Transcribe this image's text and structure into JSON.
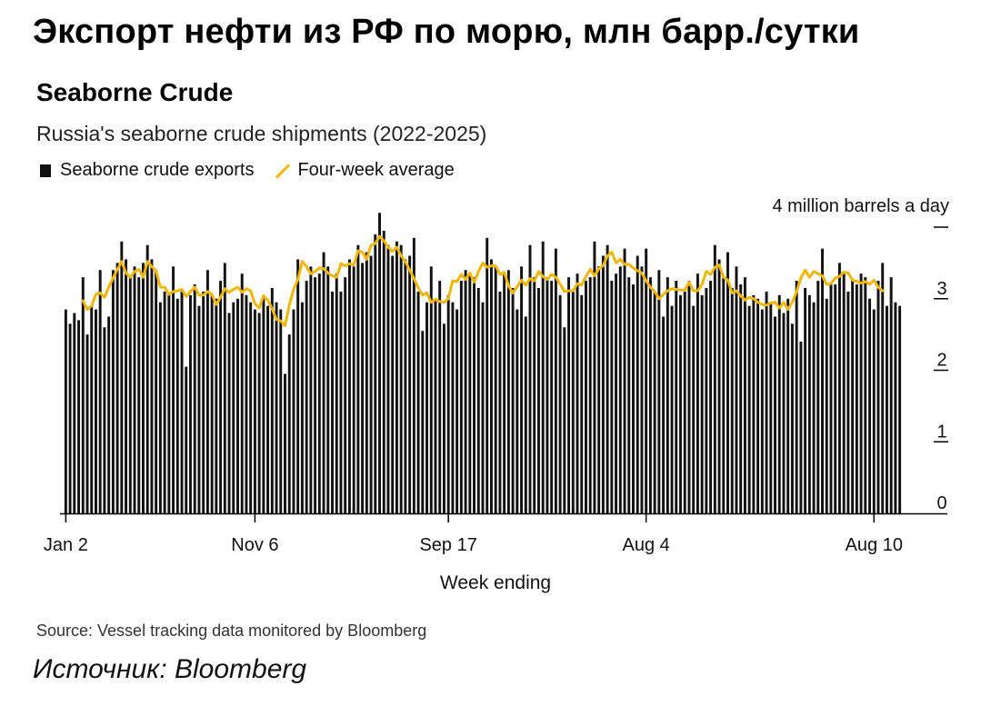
{
  "headline": "Экспорт нефти из РФ по морю, млн барр./сутки",
  "card": {
    "title": "Seaborne Crude",
    "subtitle": "Russia's seaborne crude shipments (2022-2025)",
    "legend_bars": "Seaborne crude exports",
    "legend_line": "Four-week average",
    "unit_label": "4 million barrels a day",
    "source": "Source: Vessel tracking data monitored by Bloomberg"
  },
  "footer": "Источник: Bloomberg",
  "colors": {
    "bars": "#111111",
    "line": "#f2b705",
    "grid": "#000000"
  },
  "chart_data": {
    "type": "bar",
    "title": "Seaborne Crude",
    "subtitle": "Russia's seaborne crude shipments (2022-2025)",
    "xlabel": "Week ending",
    "ylabel": "4 million barrels a day",
    "ylim": [
      0,
      4
    ],
    "yticks": [
      0,
      1,
      2,
      3,
      4
    ],
    "ytick_labels": [
      "0",
      "1",
      "2",
      "3",
      ""
    ],
    "xtick_labels": [
      {
        "label": "Jan 2",
        "index": 0
      },
      {
        "label": "Nov 6",
        "index": 44
      },
      {
        "label": "Sep 17",
        "index": 89
      },
      {
        "label": "Aug 4",
        "index": 135
      },
      {
        "label": "Aug 10",
        "index": 188
      }
    ],
    "series": [
      {
        "name": "Seaborne crude exports",
        "kind": "bar",
        "values": [
          2.85,
          2.65,
          2.8,
          2.7,
          3.3,
          2.5,
          2.9,
          2.85,
          3.4,
          2.6,
          2.75,
          3.4,
          3.5,
          3.8,
          3.55,
          3.3,
          3.45,
          3.3,
          3.5,
          3.75,
          3.55,
          3.4,
          2.95,
          3.1,
          3.05,
          3.45,
          3.0,
          3.1,
          2.05,
          3.05,
          3.2,
          2.9,
          3.1,
          3.4,
          3.05,
          3.0,
          3.25,
          3.5,
          2.8,
          2.95,
          3.0,
          3.35,
          3.05,
          2.95,
          2.85,
          2.8,
          3.0,
          2.9,
          3.15,
          2.95,
          2.85,
          1.95,
          2.5,
          2.85,
          3.55,
          2.95,
          3.25,
          3.45,
          3.3,
          3.35,
          3.65,
          3.45,
          3.1,
          3.35,
          3.1,
          3.3,
          3.55,
          3.45,
          3.75,
          3.5,
          3.65,
          3.6,
          3.9,
          4.2,
          3.95,
          3.75,
          3.6,
          3.8,
          3.75,
          3.55,
          3.6,
          3.85,
          3.1,
          2.55,
          2.95,
          3.45,
          3.0,
          3.25,
          2.65,
          3.05,
          2.95,
          2.85,
          3.25,
          3.4,
          3.35,
          3.3,
          3.15,
          2.95,
          3.85,
          3.55,
          3.45,
          3.1,
          3.35,
          3.4,
          3.15,
          2.85,
          3.45,
          2.75,
          3.75,
          3.3,
          3.15,
          3.8,
          3.3,
          3.25,
          3.7,
          3.05,
          2.6,
          3.3,
          3.1,
          3.35,
          3.05,
          3.25,
          3.3,
          3.8,
          3.45,
          3.6,
          3.75,
          3.25,
          3.35,
          3.45,
          3.7,
          3.3,
          3.2,
          3.6,
          3.45,
          3.7,
          3.3,
          3.1,
          3.4,
          2.75,
          3.3,
          2.9,
          3.25,
          3.05,
          3.1,
          3.25,
          2.9,
          3.35,
          3.05,
          3.15,
          3.25,
          3.75,
          3.55,
          3.3,
          3.65,
          3.15,
          3.45,
          3.2,
          3.3,
          2.9,
          3.05,
          3.0,
          2.85,
          3.1,
          2.95,
          2.75,
          3.05,
          2.8,
          3.0,
          2.65,
          3.25,
          2.4,
          3.15,
          3.05,
          2.95,
          3.25,
          3.7,
          3.0,
          3.2,
          3.2,
          3.5,
          3.35,
          3.1,
          3.25,
          3.2,
          3.35,
          3.3,
          3.0,
          2.85,
          3.25,
          3.5,
          2.9,
          3.3,
          2.95,
          2.9
        ]
      },
      {
        "name": "Four-week average",
        "kind": "line",
        "values": [
          2.9,
          2.9,
          2.8,
          2.88,
          2.97,
          2.85,
          2.9,
          3.06,
          3.08,
          3.02,
          3.16,
          3.29,
          3.41,
          3.52,
          3.36,
          3.3,
          3.38,
          3.41,
          3.3,
          3.52,
          3.45,
          3.39,
          3.16,
          3.16,
          3.06,
          3.1,
          3.11,
          3.13,
          3.03,
          3.1,
          3.16,
          3.05,
          3.05,
          3.1,
          3.06,
          2.92,
          3.02,
          3.14,
          3.09,
          3.13,
          3.16,
          3.09,
          3.14,
          3.11,
          2.93,
          2.87,
          3.04,
          2.98,
          2.86,
          2.71,
          2.69,
          2.62,
          2.91,
          3.13,
          3.27,
          3.52,
          3.45,
          3.35,
          3.38,
          3.43,
          3.42,
          3.36,
          3.32,
          3.3,
          3.49,
          3.46,
          3.49,
          3.47,
          3.67,
          3.65,
          3.55,
          3.75,
          3.77,
          3.87,
          3.81,
          3.72,
          3.66,
          3.72,
          3.6,
          3.52,
          3.4,
          3.28,
          3.15,
          3.05,
          3.08,
          2.95,
          2.99,
          2.96,
          2.95,
          3.0,
          3.25,
          3.24,
          3.34,
          3.27,
          3.36,
          3.23,
          3.38,
          3.5,
          3.44,
          3.46,
          3.46,
          3.34,
          3.37,
          3.18,
          3.08,
          3.17,
          3.26,
          3.19,
          3.28,
          3.25,
          3.38,
          3.31,
          3.27,
          3.34,
          3.3,
          3.2,
          3.1,
          3.11,
          3.11,
          3.21,
          3.19,
          3.31,
          3.41,
          3.32,
          3.42,
          3.46,
          3.6,
          3.65,
          3.5,
          3.55,
          3.48,
          3.48,
          3.43,
          3.39,
          3.36,
          3.25,
          3.16,
          3.1,
          3.0,
          3.06,
          3.11,
          3.14,
          3.13,
          3.12,
          3.12,
          3.23,
          3.11,
          3.11,
          3.2,
          3.38,
          3.34,
          3.44,
          3.47,
          3.3,
          3.26,
          3.08,
          3.11,
          3.04,
          2.98,
          3.02,
          3.0,
          2.95,
          2.92,
          2.91,
          2.94,
          2.95,
          2.87,
          2.95,
          2.85,
          2.95,
          3.1,
          3.29,
          3.4,
          3.3,
          3.38,
          3.35,
          3.32,
          3.2,
          3.21,
          3.29,
          3.31,
          3.37,
          3.36,
          3.26,
          3.24,
          3.22,
          3.24,
          3.2,
          3.26,
          3.16,
          3.11
        ]
      }
    ]
  }
}
